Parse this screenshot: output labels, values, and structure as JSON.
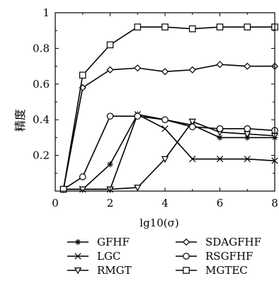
{
  "chart_data": {
    "type": "line",
    "title": "",
    "xlabel": "lg10(σ)",
    "ylabel": "精度",
    "xlim": [
      0,
      8
    ],
    "ylim": [
      0,
      1
    ],
    "xticks": [
      "0",
      "2",
      "4",
      "6",
      "8"
    ],
    "yticks": [
      "0.2",
      "0.4",
      "0.6",
      "0.8",
      "1"
    ],
    "legend_position": "bottom",
    "grid": false,
    "series": [
      {
        "name": "GFHF",
        "marker": "asterisk",
        "x": [
          0.3,
          1,
          2,
          3,
          4,
          5,
          6,
          7,
          8
        ],
        "y": [
          0.01,
          0.01,
          0.15,
          0.43,
          0.4,
          0.37,
          0.3,
          0.3,
          0.3
        ]
      },
      {
        "name": "LGC",
        "marker": "x",
        "x": [
          0.3,
          1,
          2,
          3,
          4,
          5,
          6,
          7,
          8
        ],
        "y": [
          0.01,
          0.01,
          0.01,
          0.43,
          0.35,
          0.18,
          0.18,
          0.18,
          0.17
        ]
      },
      {
        "name": "RMGT",
        "marker": "triangle-down",
        "x": [
          0.3,
          1,
          2,
          3,
          4,
          5,
          6,
          7,
          8
        ],
        "y": [
          0.01,
          0.01,
          0.01,
          0.02,
          0.18,
          0.39,
          0.33,
          0.32,
          0.31
        ]
      },
      {
        "name": "SDAGFHF",
        "marker": "diamond",
        "x": [
          0.3,
          1,
          2,
          3,
          4,
          5,
          6,
          7,
          8
        ],
        "y": [
          0.01,
          0.58,
          0.68,
          0.69,
          0.67,
          0.68,
          0.71,
          0.7,
          0.7
        ]
      },
      {
        "name": "RSGFHF",
        "marker": "circle",
        "x": [
          0.3,
          1,
          2,
          3,
          4,
          5,
          6,
          7,
          8
        ],
        "y": [
          0.01,
          0.08,
          0.42,
          0.42,
          0.4,
          0.36,
          0.35,
          0.35,
          0.34
        ]
      },
      {
        "name": "MGTEC",
        "marker": "square",
        "x": [
          0.3,
          1,
          2,
          3,
          4,
          5,
          6,
          7,
          8
        ],
        "y": [
          0.01,
          0.65,
          0.82,
          0.92,
          0.92,
          0.91,
          0.92,
          0.92,
          0.92
        ]
      }
    ]
  }
}
